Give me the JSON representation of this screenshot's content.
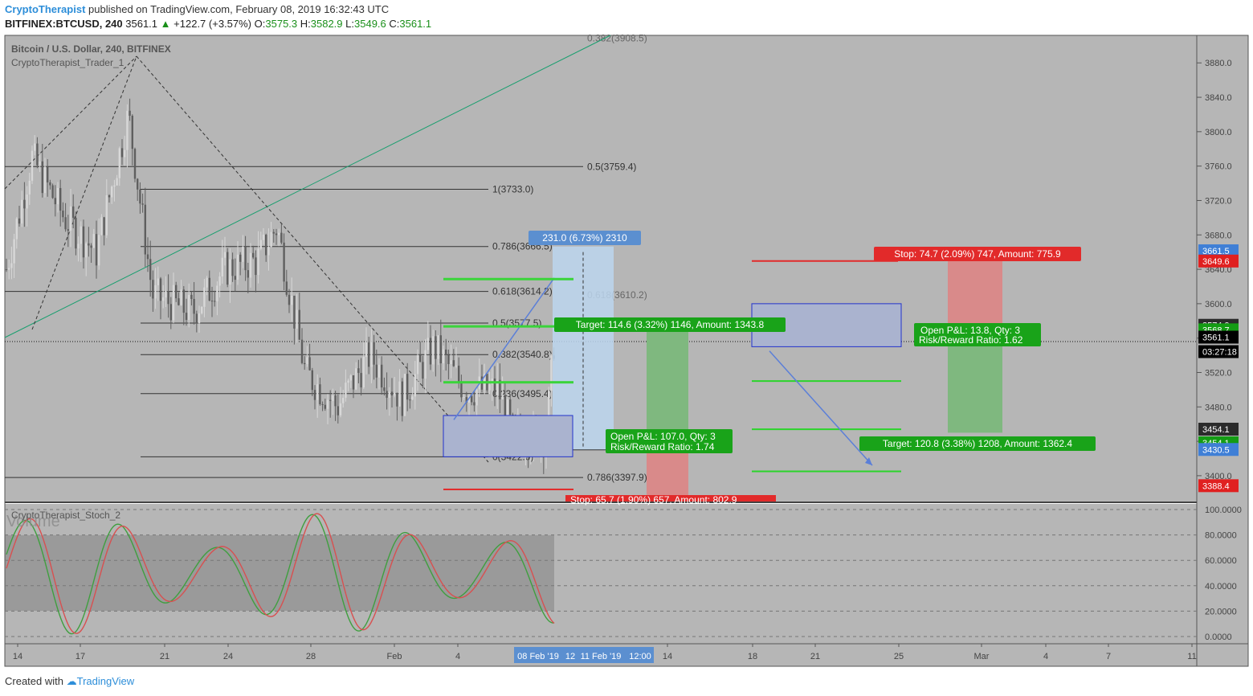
{
  "header": {
    "author": "CryptoTherapist",
    "published": "published on TradingView.com, February 08, 2019 16:32:43 UTC",
    "symbol": "BITFINEX:BTCUSD, 240",
    "last": "3561.1",
    "change": "+122.7 (+3.57%)",
    "o_label": "O:",
    "o": "3575.3",
    "h_label": "H:",
    "h": "3582.9",
    "l_label": "L:",
    "l": "3549.6",
    "c_label": "C:",
    "c": "3561.1"
  },
  "footer": {
    "created_with": "Created with",
    "brand": "TradingView"
  },
  "chart_data": [
    {
      "type": "candlestick",
      "title": "Bitcoin / U.S. Dollar, 240, BITFINEX",
      "indicator_label": "CryptoTherapist_Trader_1",
      "ylim": [
        3370,
        3912
      ],
      "y_ticks": [
        "3880.0",
        "3840.0",
        "3800.0",
        "3760.0",
        "3720.0",
        "3680.0",
        "3640.0",
        "3600.0",
        "3560.0",
        "3520.0",
        "3480.0",
        "3440.0",
        "3400.0"
      ],
      "x_ticks": [
        "14",
        "17",
        "21",
        "24",
        "28",
        "Feb",
        "4",
        "14",
        "18",
        "21",
        "25",
        "Mar",
        "4",
        "7",
        "11"
      ],
      "x_highlight": [
        "08 Feb '19",
        "12",
        "11 Feb '19",
        "12:00"
      ],
      "price_tags": [
        {
          "value": "3661.5",
          "color": "#3f7fd6"
        },
        {
          "value": "3649.6",
          "color": "#e02020"
        },
        {
          "value": "3574.9",
          "color": "#2b2b2b"
        },
        {
          "value": "3568.7",
          "color": "#149c14"
        },
        {
          "value": "3561.1",
          "color": "#000000"
        },
        {
          "value": "03:27:18",
          "color": "#000000"
        },
        {
          "value": "3454.1",
          "color": "#2b2b2b"
        },
        {
          "value": "3454.1",
          "color": "#149c14"
        },
        {
          "value": "3430.5",
          "color": "#3f7fd6"
        },
        {
          "value": "3388.4",
          "color": "#e02020"
        }
      ],
      "fib_levels": [
        {
          "label": "0.382(3908.5)",
          "y": 3908.5
        },
        {
          "label": "0.5(3759.4)",
          "y": 3759.4
        },
        {
          "label": "1(3733.0)",
          "y": 3733.0
        },
        {
          "label": "0.786(3666.5)",
          "y": 3666.5
        },
        {
          "label": "0.618(3614.2)",
          "y": 3614.2
        },
        {
          "label": "0.618(3610.2)",
          "y": 3610.2
        },
        {
          "label": "0.5(3577.5)",
          "y": 3577.5
        },
        {
          "label": "0.382(3540.8)",
          "y": 3540.8
        },
        {
          "label": "0.236(3495.4)",
          "y": 3495.4
        },
        {
          "label": "0(3422.0)",
          "y": 3422.0
        },
        {
          "label": "0.786(3397.9)",
          "y": 3397.9
        }
      ],
      "annotations": {
        "measure": "231.0 (6.73%) 2310",
        "long_target": "Target: 114.6 (3.32%) 1146, Amount: 1343.8",
        "long_pnl": "Open P&L: 107.0, Qty: 3",
        "long_rr": "Risk/Reward Ratio: 1.74",
        "long_stop": "Stop: 65.7 (1.90%) 657, Amount: 802.9",
        "short_stop": "Stop: 74.7 (2.09%) 747, Amount: 775.9",
        "short_pnl": "Open P&L: 13.8, Qty: 3",
        "short_rr": "Risk/Reward Ratio: 1.62",
        "short_target": "Target: 120.8 (3.38%) 1208, Amount: 1362.4"
      },
      "colors": {
        "bg": "#b6b6b6",
        "up": "#d8d8d8",
        "down": "#5f5f5f",
        "target": "#19a319",
        "stop": "#e22a2a",
        "measure": "#5b8fd0",
        "trend": "#1a9f6f"
      }
    },
    {
      "type": "line",
      "indicator_label": "CryptoTherapist_Stoch_2",
      "watermark": "Volume",
      "ylim": [
        0,
        100
      ],
      "y_ticks": [
        "100.0000",
        "80.0000",
        "60.0000",
        "40.0000",
        "20.0000",
        "0.0000"
      ],
      "series": [
        {
          "color": "#3f9f3f"
        },
        {
          "color": "#d85050"
        }
      ]
    }
  ]
}
